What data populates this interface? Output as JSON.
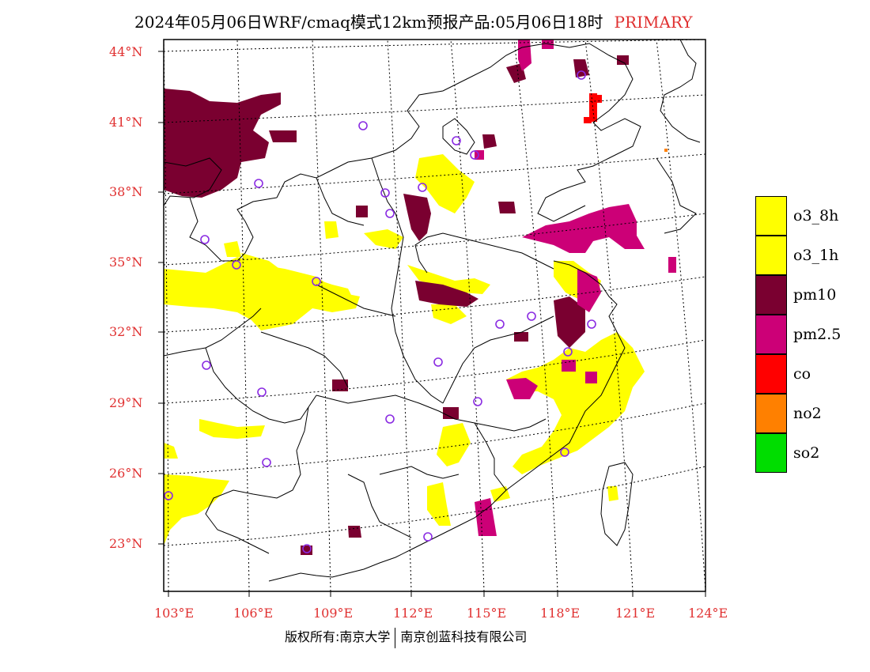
{
  "header": {
    "title": "2024年05月06日WRF/cmaq模式12km预报产品:05月06日18时",
    "tag": "PRIMARY",
    "tag_color": "#e03030"
  },
  "map": {
    "lat_labels": [
      "44°N",
      "41°N",
      "38°N",
      "35°N",
      "32°N",
      "29°N",
      "26°N",
      "23°N"
    ],
    "lon_labels": [
      "103°E",
      "106°E",
      "109°E",
      "112°E",
      "115°E",
      "118°E",
      "121°E",
      "124°E"
    ]
  },
  "legend": {
    "items": [
      {
        "label": "o3_8h",
        "color": "#ffff00"
      },
      {
        "label": "o3_1h",
        "color": "#ffff00"
      },
      {
        "label": "pm10",
        "color": "#7a0030"
      },
      {
        "label": "pm2.5",
        "color": "#cc0077"
      },
      {
        "label": "co",
        "color": "#ff0000"
      },
      {
        "label": "no2",
        "color": "#ff8000"
      },
      {
        "label": "so2",
        "color": "#00dd00"
      }
    ]
  },
  "footer": {
    "left": "版权所有:南京大学",
    "right": "南京创蓝科技有限公司"
  },
  "colors": {
    "o3": "#ffff00",
    "pm10": "#7a0030",
    "pm25": "#cc0077",
    "co": "#ff0000",
    "no2": "#ff8000",
    "station_ring": "#8a2be2",
    "label": "#e03030"
  }
}
